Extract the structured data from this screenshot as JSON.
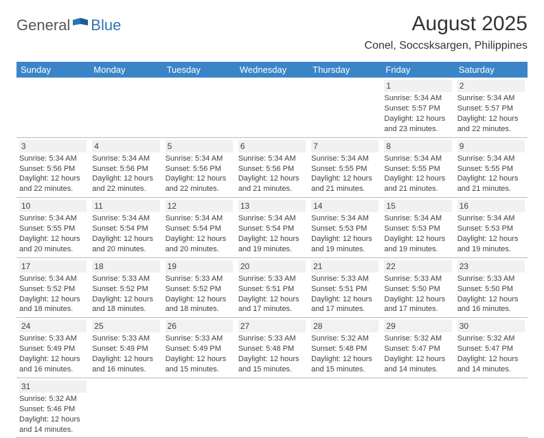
{
  "brand": {
    "part1": "General",
    "part2": "Blue"
  },
  "title": "August 2025",
  "location": "Conel, Soccsksargen, Philippines",
  "colors": {
    "header_bg": "#3a85c8",
    "header_fg": "#ffffff",
    "brand_accent": "#2e74b5",
    "text": "#333333",
    "daynum_bg": "#f1f1f1",
    "rule": "#b8b8b8"
  },
  "weekdays": [
    "Sunday",
    "Monday",
    "Tuesday",
    "Wednesday",
    "Thursday",
    "Friday",
    "Saturday"
  ],
  "weeks": [
    [
      null,
      null,
      null,
      null,
      null,
      {
        "d": "1",
        "sr": "5:34 AM",
        "ss": "5:57 PM",
        "dl": "12 hours and 23 minutes."
      },
      {
        "d": "2",
        "sr": "5:34 AM",
        "ss": "5:57 PM",
        "dl": "12 hours and 22 minutes."
      }
    ],
    [
      {
        "d": "3",
        "sr": "5:34 AM",
        "ss": "5:56 PM",
        "dl": "12 hours and 22 minutes."
      },
      {
        "d": "4",
        "sr": "5:34 AM",
        "ss": "5:56 PM",
        "dl": "12 hours and 22 minutes."
      },
      {
        "d": "5",
        "sr": "5:34 AM",
        "ss": "5:56 PM",
        "dl": "12 hours and 22 minutes."
      },
      {
        "d": "6",
        "sr": "5:34 AM",
        "ss": "5:56 PM",
        "dl": "12 hours and 21 minutes."
      },
      {
        "d": "7",
        "sr": "5:34 AM",
        "ss": "5:55 PM",
        "dl": "12 hours and 21 minutes."
      },
      {
        "d": "8",
        "sr": "5:34 AM",
        "ss": "5:55 PM",
        "dl": "12 hours and 21 minutes."
      },
      {
        "d": "9",
        "sr": "5:34 AM",
        "ss": "5:55 PM",
        "dl": "12 hours and 21 minutes."
      }
    ],
    [
      {
        "d": "10",
        "sr": "5:34 AM",
        "ss": "5:55 PM",
        "dl": "12 hours and 20 minutes."
      },
      {
        "d": "11",
        "sr": "5:34 AM",
        "ss": "5:54 PM",
        "dl": "12 hours and 20 minutes."
      },
      {
        "d": "12",
        "sr": "5:34 AM",
        "ss": "5:54 PM",
        "dl": "12 hours and 20 minutes."
      },
      {
        "d": "13",
        "sr": "5:34 AM",
        "ss": "5:54 PM",
        "dl": "12 hours and 19 minutes."
      },
      {
        "d": "14",
        "sr": "5:34 AM",
        "ss": "5:53 PM",
        "dl": "12 hours and 19 minutes."
      },
      {
        "d": "15",
        "sr": "5:34 AM",
        "ss": "5:53 PM",
        "dl": "12 hours and 19 minutes."
      },
      {
        "d": "16",
        "sr": "5:34 AM",
        "ss": "5:53 PM",
        "dl": "12 hours and 19 minutes."
      }
    ],
    [
      {
        "d": "17",
        "sr": "5:34 AM",
        "ss": "5:52 PM",
        "dl": "12 hours and 18 minutes."
      },
      {
        "d": "18",
        "sr": "5:33 AM",
        "ss": "5:52 PM",
        "dl": "12 hours and 18 minutes."
      },
      {
        "d": "19",
        "sr": "5:33 AM",
        "ss": "5:52 PM",
        "dl": "12 hours and 18 minutes."
      },
      {
        "d": "20",
        "sr": "5:33 AM",
        "ss": "5:51 PM",
        "dl": "12 hours and 17 minutes."
      },
      {
        "d": "21",
        "sr": "5:33 AM",
        "ss": "5:51 PM",
        "dl": "12 hours and 17 minutes."
      },
      {
        "d": "22",
        "sr": "5:33 AM",
        "ss": "5:50 PM",
        "dl": "12 hours and 17 minutes."
      },
      {
        "d": "23",
        "sr": "5:33 AM",
        "ss": "5:50 PM",
        "dl": "12 hours and 16 minutes."
      }
    ],
    [
      {
        "d": "24",
        "sr": "5:33 AM",
        "ss": "5:49 PM",
        "dl": "12 hours and 16 minutes."
      },
      {
        "d": "25",
        "sr": "5:33 AM",
        "ss": "5:49 PM",
        "dl": "12 hours and 16 minutes."
      },
      {
        "d": "26",
        "sr": "5:33 AM",
        "ss": "5:49 PM",
        "dl": "12 hours and 15 minutes."
      },
      {
        "d": "27",
        "sr": "5:33 AM",
        "ss": "5:48 PM",
        "dl": "12 hours and 15 minutes."
      },
      {
        "d": "28",
        "sr": "5:32 AM",
        "ss": "5:48 PM",
        "dl": "12 hours and 15 minutes."
      },
      {
        "d": "29",
        "sr": "5:32 AM",
        "ss": "5:47 PM",
        "dl": "12 hours and 14 minutes."
      },
      {
        "d": "30",
        "sr": "5:32 AM",
        "ss": "5:47 PM",
        "dl": "12 hours and 14 minutes."
      }
    ],
    [
      {
        "d": "31",
        "sr": "5:32 AM",
        "ss": "5:46 PM",
        "dl": "12 hours and 14 minutes."
      },
      null,
      null,
      null,
      null,
      null,
      null
    ]
  ],
  "labels": {
    "sunrise": "Sunrise: ",
    "sunset": "Sunset: ",
    "daylight": "Daylight: "
  }
}
